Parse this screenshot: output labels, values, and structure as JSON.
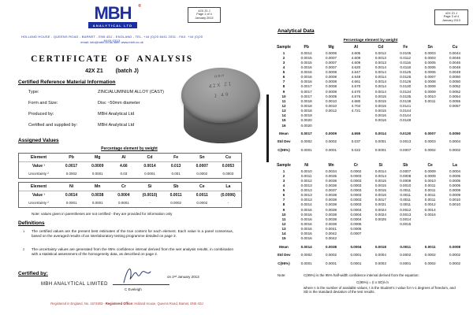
{
  "header": {
    "logo_text": "MBH",
    "logo_reg": "®",
    "logo_sub": "ANALYTICAL LTD",
    "address": "HOLLAND HOUSE - QUEENS ROAD - BARNET - EN5 4DJ - ENGLAND - TEL. +44 (0)20 8441 2031 - FAX. +44 (0)20 8440 0313",
    "contact": "email: info@mbh.co.uk    web: www.mbh.co.uk",
    "accent_blue": "#1b2f9e",
    "accent_red": "#c42222"
  },
  "page_tag_left": {
    "line1": "42X Z1 J",
    "line2": "Page 1 of 4",
    "line3": "January 2013"
  },
  "page_tag_right": {
    "line1": "42X Z1 J",
    "line2": "Page 3 of 4",
    "line3": "January 2013"
  },
  "title": "CERTIFICATE OF ANALYSIS",
  "subtitle": {
    "sample": "42X Z1",
    "batch": "(batch J)"
  },
  "crm": {
    "heading": "Certified Reference Material Information",
    "rows": [
      [
        "Type:",
        "ZINC/ALUMINIUM ALLOY    (CAST)"
      ],
      [
        "Form and Size:",
        "Disc ~50mm diameter"
      ],
      [
        "Produced by:",
        "MBH Analytical Ltd"
      ],
      [
        "Certified and supplied by:",
        "MBH Analytical Ltd"
      ]
    ]
  },
  "assigned": {
    "heading": "Assigned Values",
    "pct_label": "Percentage element by weight",
    "table1": {
      "headers": [
        "Element",
        "Pb",
        "Mg",
        "Al",
        "Cd",
        "Fe",
        "Sn",
        "Cu"
      ],
      "rows": [
        [
          "Value ¹",
          "0.0017",
          "0.0009",
          "4.66",
          "0.0014",
          "0.013",
          "0.0007",
          "0.0053"
        ],
        [
          "Uncertainty ²",
          "0.0002",
          "0.0001",
          "0.03",
          "0.0001",
          "0.001",
          "0.0002",
          "0.0003"
        ]
      ]
    },
    "table2": {
      "headers": [
        "Element",
        "Ni",
        "Mn",
        "Cr",
        "Si",
        "Sb",
        "Ce",
        "La"
      ],
      "rows": [
        [
          "Value ¹",
          "0.0014",
          "0.0038",
          "0.0004",
          "(0.0010)",
          "0.0011",
          "0.0011",
          "(0.0006)"
        ],
        [
          "Uncertainty ²",
          "0.0001",
          "0.0001",
          "0.0001",
          "-",
          "0.0002",
          "0.0002",
          "-"
        ]
      ]
    },
    "note": "Note:  values given in parentheses are not certified - they are provided for information only"
  },
  "definitions": {
    "heading": "Definitions",
    "items": [
      {
        "sup": "1",
        "text": "The certified values are the present best estimates of the true content for each element.  Each value is a panel consensus, based on the averaged results of an interlaboratory testing programme detailed on page 3."
      },
      {
        "sup": "2",
        "text": "The uncertainty values are generated from the 95% confidence interval derived from the wet analysis results, in combination with a statistical assessment of the homogeneity data, as described on page 2."
      }
    ]
  },
  "certified": {
    "heading": "Certified by:",
    "company": "MBH ANALYTICAL LIMITED",
    "signer": "C Eveleigh",
    "date": "on 2ⁿᵈ January 2013"
  },
  "footer": {
    "part1": "Registered in England, No. 1574803  -  ",
    "part2": "Registered Office:",
    "part3": " Holland House, Queens Road, Barnet, EN5 4DJ"
  },
  "disc": {
    "line1": "MBH",
    "line2": "42X Z1",
    "line3": "J 49"
  },
  "analytical": {
    "heading": "Analytical Data",
    "pct_label": "Percentage element by weight",
    "table1": {
      "headers": [
        "Sample",
        "Pb",
        "Mg",
        "Al",
        "Cd",
        "Fe",
        "Sn",
        "Cu"
      ],
      "rows": [
        [
          "1",
          "0.0014",
          "0.0006",
          "4.605",
          "0.0012",
          "0.0105",
          "0.0003",
          "0.0044"
        ],
        [
          "2",
          "0.0015",
          "0.0007",
          "4.609",
          "0.0013",
          "0.0112",
          "0.0003",
          "0.0046"
        ],
        [
          "3",
          "0.0015",
          "0.0007",
          "4.609",
          "0.0013",
          "0.0116",
          "0.0005",
          "0.0046"
        ],
        [
          "4",
          "0.0016",
          "0.0007",
          "4.620",
          "0.0014",
          "0.0118",
          "0.0005",
          "0.0048"
        ],
        [
          "5",
          "0.0016",
          "0.0008",
          "4.647",
          "0.0014",
          "0.0125",
          "0.0006",
          "0.0049"
        ],
        [
          "6",
          "0.0016",
          "0.0008",
          "4.649",
          "0.0014",
          "0.0126",
          "0.0007",
          "0.0050"
        ],
        [
          "7",
          "0.0016",
          "0.0008",
          "4.661",
          "0.0014",
          "0.0126",
          "0.0008",
          "0.0050"
        ],
        [
          "8",
          "0.0017",
          "0.0008",
          "4.670",
          "0.0014",
          "0.0130",
          "0.0008",
          "0.0052"
        ],
        [
          "9",
          "0.0017",
          "0.0009",
          "4.670",
          "0.0014",
          "0.0134",
          "0.0009",
          "0.0052"
        ],
        [
          "10",
          "0.0017",
          "0.0009",
          "4.676",
          "0.0015",
          "0.0135",
          "0.0010",
          "0.0054"
        ],
        [
          "11",
          "0.0018",
          "0.0010",
          "4.680",
          "0.0015",
          "0.0138",
          "0.0011",
          "0.0055"
        ],
        [
          "12",
          "0.0018",
          "0.0010",
          "4.704",
          "0.0015",
          "0.0141",
          "",
          "0.0057"
        ],
        [
          "13",
          "0.0018",
          "0.0012",
          "4.721",
          "0.0015",
          "0.0144",
          "",
          ""
        ],
        [
          "14",
          "0.0019",
          "",
          "",
          "0.0016",
          "0.0144",
          "",
          ""
        ],
        [
          "15",
          "0.0020",
          "",
          "",
          "0.0016",
          "0.0149",
          "",
          ""
        ],
        [
          "16",
          "0.0020",
          "",
          "",
          "",
          "",
          "",
          ""
        ]
      ],
      "mean": [
        "Mean",
        "0.0017",
        "0.0009",
        "4.655",
        "0.0014",
        "0.0130",
        "0.0007",
        "0.0050"
      ],
      "std": [
        "Std Dev",
        "0.0002",
        "0.0002",
        "0.037",
        "0.0001",
        "0.0013",
        "0.0003",
        "0.0004"
      ],
      "c95": [
        "C(95%)",
        "0.0001",
        "0.0001",
        "0.022",
        "0.0001",
        "0.0007",
        "0.0002",
        "0.0002"
      ]
    },
    "table2": {
      "headers": [
        "Sample",
        "Ni",
        "Mn",
        "Cr",
        "Si",
        "Sb",
        "Ce",
        "La"
      ],
      "rows": [
        [
          "1",
          "0.0010",
          "0.0034",
          "0.0002",
          "0.0014",
          "0.0007",
          "0.0009",
          "0.0004"
        ],
        [
          "2",
          "0.0011",
          "0.0035",
          "0.0003",
          "0.0014",
          "0.0008",
          "0.0009",
          "0.0005"
        ],
        [
          "3",
          "0.0012",
          "0.0036",
          "0.0003",
          "0.0015",
          "0.0009",
          "0.0010",
          "0.0005"
        ],
        [
          "4",
          "0.0013",
          "0.0036",
          "0.0003",
          "0.0015",
          "0.0010",
          "0.0011",
          "0.0005"
        ],
        [
          "5",
          "0.0013",
          "0.0037",
          "0.0003",
          "0.0015",
          "0.0011",
          "0.0011",
          "0.0009"
        ],
        [
          "6",
          "0.0013",
          "0.0038",
          "0.0003",
          "0.0016",
          "0.0011",
          "0.0011",
          "0.0009"
        ],
        [
          "7",
          "0.0013",
          "0.0038",
          "0.0003",
          "0.0017",
          "0.0011",
          "0.0011",
          "0.0010"
        ],
        [
          "8",
          "0.0014",
          "0.0038",
          "0.0003",
          "0.0021",
          "0.0011",
          "0.0012",
          "0.0010"
        ],
        [
          "9",
          "0.0016",
          "0.0038",
          "0.0004",
          "0.0024",
          "0.0012",
          "0.0014",
          ""
        ],
        [
          "10",
          "0.0016",
          "0.0038",
          "0.0004",
          "0.0024",
          "0.0013",
          "0.0016",
          ""
        ],
        [
          "11",
          "0.0016",
          "0.0038",
          "0.0004",
          "0.0025",
          "0.0014",
          "",
          ""
        ],
        [
          "12",
          "0.0016",
          "0.0038",
          "0.0005",
          "",
          "0.0015",
          "",
          ""
        ],
        [
          "13",
          "0.0016",
          "0.0041",
          "0.0006",
          "",
          "",
          "",
          ""
        ],
        [
          "14",
          "0.0016",
          "0.0042",
          "0.0007",
          "",
          "",
          "",
          ""
        ],
        [
          "15",
          "0.0016",
          "0.0042",
          "",
          "",
          "",
          "",
          ""
        ]
      ],
      "mean": [
        "Mean",
        "0.0014",
        "0.0038",
        "0.0004",
        "0.0018",
        "0.0011",
        "0.0011",
        "0.0008"
      ],
      "std": [
        "Std Dev",
        "0.0002",
        "0.0002",
        "0.0001",
        "0.0004",
        "0.0002",
        "0.0002",
        "0.0002"
      ],
      "c95": [
        "C(95%)",
        "0.0001",
        "0.0001",
        "0.0001",
        "0.0003",
        "0.0001",
        "0.0002",
        "0.0002"
      ]
    },
    "note_label": "Note:",
    "note1": "C(95%) is the 95% half-width confidence interval derived from the equation:",
    "equation": "C(95%) = (t x SD)/√n",
    "note2": "where n is the number of available values, t is the Student's t value for n-1 degrees of freedom, and SD is the standard deviation of the test results."
  }
}
